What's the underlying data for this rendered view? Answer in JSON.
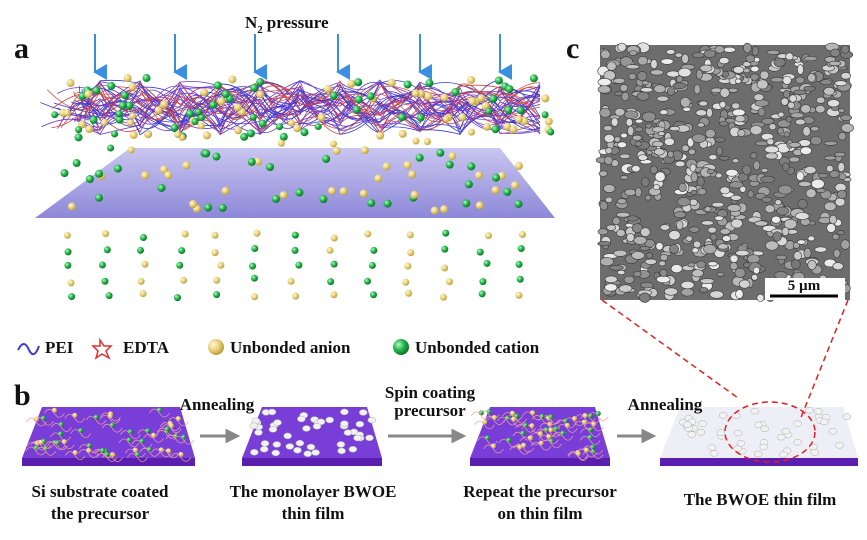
{
  "panels": {
    "a": {
      "letter": "a",
      "pressure_label": {
        "main": "N",
        "subscript": "2",
        "rest": "pressure"
      },
      "legend": [
        "PEI",
        "EDTA",
        "Unbonded anion",
        "Unbonded cation"
      ]
    },
    "b": {
      "letter": "b",
      "steps": [
        [
          "Si substrate coated",
          "the precursor"
        ],
        [
          "The monolayer BWOE",
          "thin film"
        ],
        [
          "Repeat the precursor",
          "on thin film"
        ],
        [
          "The BWOE thin film"
        ]
      ],
      "arrows": [
        [
          "Annealing"
        ],
        [
          "Spin coating",
          "precursor"
        ],
        [
          "Annealing"
        ]
      ]
    },
    "c": {
      "letter": "c",
      "scale_bar": "5 µm"
    }
  }
}
